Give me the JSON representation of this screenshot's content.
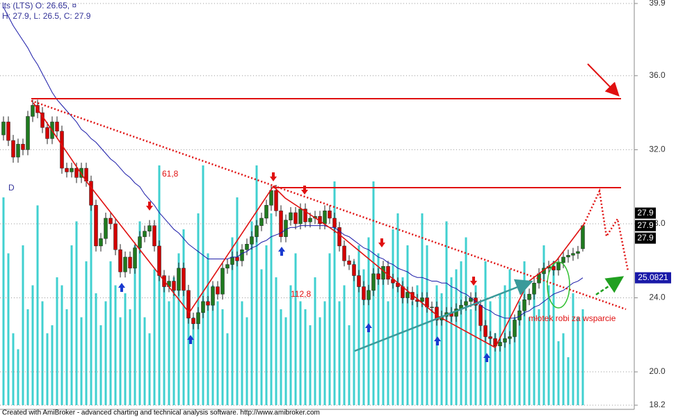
{
  "chart_data": {
    "type": "candlestick",
    "header_lines": [
      "lts (LTS) O: 26.65, ¤",
      "H: 27.9, L: 26.5, C: 27.9"
    ],
    "footer": "Created with AmiBroker - advanced charting and technical analysis software. http://www.amibroker.com",
    "annotations": {
      "d": "D",
      "fib1": "61,8",
      "fib2": "112,8",
      "note": "młotek robi za wsparcie"
    },
    "ylim": [
      18.2,
      39.9
    ],
    "yticks": [
      {
        "value": 18.2,
        "label": "18.2"
      },
      {
        "value": 20,
        "label": "20.0"
      },
      {
        "value": 24,
        "label": "24.0"
      },
      {
        "value": 28,
        "label": "28.0"
      },
      {
        "value": 32,
        "label": "32.0"
      },
      {
        "value": 36,
        "label": "36.0"
      },
      {
        "value": 39.9,
        "label": "39.9"
      }
    ],
    "grid": true,
    "up_color": "#1f7a1f",
    "down_color": "#d40000",
    "candles": [
      [
        32.8,
        33.8,
        32.5,
        33.5
      ],
      [
        33.5,
        33.8,
        32.2,
        32.5
      ],
      [
        32.5,
        32.8,
        31.3,
        31.6
      ],
      [
        31.6,
        32.6,
        31.3,
        32.3
      ],
      [
        32.3,
        32.6,
        31.7,
        32.0
      ],
      [
        32.0,
        34.1,
        31.7,
        33.8
      ],
      [
        33.8,
        34.7,
        33.5,
        34.4
      ],
      [
        34.4,
        34.7,
        33.7,
        34.0
      ],
      [
        34.0,
        34.3,
        32.9,
        33.2
      ],
      [
        33.2,
        33.5,
        32.3,
        32.6
      ],
      [
        32.6,
        33.8,
        32.3,
        33.5
      ],
      [
        33.5,
        33.8,
        32.7,
        33.0
      ],
      [
        33.0,
        33.3,
        30.7,
        31.0
      ],
      [
        31.0,
        31.3,
        30.5,
        30.8
      ],
      [
        30.8,
        31.3,
        30.5,
        31.0
      ],
      [
        31.0,
        31.3,
        30.2,
        30.5
      ],
      [
        30.5,
        31.3,
        30.2,
        31.0
      ],
      [
        31.0,
        31.3,
        30.0,
        30.3
      ],
      [
        30.3,
        30.6,
        28.7,
        29.0
      ],
      [
        29.0,
        29.3,
        26.5,
        26.8
      ],
      [
        26.8,
        27.5,
        26.5,
        27.2
      ],
      [
        27.2,
        28.6,
        26.9,
        28.3
      ],
      [
        28.3,
        28.6,
        27.7,
        28.0
      ],
      [
        28.0,
        28.3,
        26.3,
        26.6
      ],
      [
        26.6,
        26.9,
        25.1,
        25.4
      ],
      [
        25.4,
        26.5,
        25.1,
        26.2
      ],
      [
        26.2,
        26.5,
        25.3,
        25.6
      ],
      [
        25.6,
        27.0,
        25.3,
        26.7
      ],
      [
        26.7,
        27.6,
        26.4,
        27.3
      ],
      [
        27.3,
        27.9,
        27.0,
        27.6
      ],
      [
        27.6,
        28.2,
        27.3,
        27.9
      ],
      [
        27.9,
        28.2,
        26.5,
        26.8
      ],
      [
        26.8,
        27.1,
        24.9,
        25.2
      ],
      [
        25.2,
        25.5,
        24.3,
        24.6
      ],
      [
        24.6,
        25.2,
        24.3,
        24.9
      ],
      [
        24.9,
        25.2,
        24.1,
        24.4
      ],
      [
        24.4,
        25.9,
        24.1,
        25.6
      ],
      [
        25.6,
        25.9,
        24.1,
        24.4
      ],
      [
        24.4,
        24.7,
        22.6,
        22.9
      ],
      [
        22.9,
        23.2,
        22.3,
        22.6
      ],
      [
        22.6,
        23.5,
        22.3,
        23.2
      ],
      [
        23.2,
        24.1,
        22.9,
        23.8
      ],
      [
        23.8,
        24.1,
        23.3,
        23.6
      ],
      [
        23.6,
        24.9,
        23.3,
        24.6
      ],
      [
        24.6,
        24.9,
        23.9,
        24.2
      ],
      [
        24.2,
        25.9,
        23.9,
        25.6
      ],
      [
        25.6,
        26.1,
        25.3,
        25.8
      ],
      [
        25.8,
        26.5,
        25.5,
        26.2
      ],
      [
        26.2,
        26.5,
        25.7,
        26.0
      ],
      [
        26.0,
        26.9,
        25.7,
        26.6
      ],
      [
        26.6,
        27.2,
        26.3,
        26.9
      ],
      [
        26.9,
        27.6,
        26.6,
        27.3
      ],
      [
        27.3,
        28.2,
        27.0,
        27.9
      ],
      [
        27.9,
        28.6,
        27.6,
        28.3
      ],
      [
        28.3,
        29.3,
        28.0,
        29.0
      ],
      [
        29.0,
        30.1,
        28.7,
        29.8
      ],
      [
        29.8,
        30.1,
        28.4,
        28.7
      ],
      [
        28.7,
        29.0,
        27.0,
        27.3
      ],
      [
        27.3,
        28.5,
        27.0,
        28.2
      ],
      [
        28.2,
        28.9,
        27.9,
        28.6
      ],
      [
        28.6,
        28.9,
        27.7,
        28.0
      ],
      [
        28.0,
        29.1,
        27.7,
        28.8
      ],
      [
        28.8,
        29.1,
        27.8,
        28.1
      ],
      [
        28.1,
        28.6,
        27.8,
        28.3
      ],
      [
        28.3,
        28.7,
        28.0,
        28.4
      ],
      [
        28.4,
        28.7,
        27.7,
        28.0
      ],
      [
        28.0,
        29.0,
        27.7,
        28.7
      ],
      [
        28.7,
        29.0,
        28.0,
        28.3
      ],
      [
        28.3,
        28.6,
        27.5,
        27.8
      ],
      [
        27.8,
        28.1,
        26.5,
        26.8
      ],
      [
        26.8,
        27.1,
        25.7,
        26.0
      ],
      [
        26.0,
        26.3,
        25.5,
        25.8
      ],
      [
        25.8,
        26.1,
        24.9,
        25.2
      ],
      [
        25.2,
        25.5,
        24.3,
        24.6
      ],
      [
        24.6,
        24.9,
        23.6,
        23.9
      ],
      [
        23.9,
        24.7,
        23.6,
        24.4
      ],
      [
        24.4,
        25.6,
        24.1,
        25.3
      ],
      [
        25.3,
        25.6,
        24.7,
        25.0
      ],
      [
        25.0,
        26.0,
        24.7,
        25.7
      ],
      [
        25.7,
        26.0,
        24.7,
        25.0
      ],
      [
        25.0,
        25.3,
        24.5,
        24.8
      ],
      [
        24.8,
        25.1,
        24.3,
        24.6
      ],
      [
        24.6,
        24.9,
        23.7,
        24.0
      ],
      [
        24.0,
        24.6,
        23.7,
        24.3
      ],
      [
        24.3,
        24.6,
        23.6,
        23.9
      ],
      [
        23.9,
        24.2,
        23.5,
        23.8
      ],
      [
        23.8,
        24.3,
        23.5,
        24.0
      ],
      [
        24.0,
        24.3,
        23.2,
        23.5
      ],
      [
        23.5,
        23.8,
        23.2,
        23.5
      ],
      [
        23.5,
        23.8,
        22.5,
        22.8
      ],
      [
        22.8,
        23.3,
        22.5,
        23.0
      ],
      [
        23.0,
        23.5,
        22.7,
        23.2
      ],
      [
        23.2,
        23.5,
        22.7,
        23.0
      ],
      [
        23.0,
        23.7,
        22.7,
        23.4
      ],
      [
        23.4,
        23.9,
        23.1,
        23.6
      ],
      [
        23.6,
        24.1,
        23.3,
        23.8
      ],
      [
        23.8,
        24.3,
        23.5,
        24.0
      ],
      [
        24.0,
        24.3,
        23.3,
        23.6
      ],
      [
        23.6,
        23.9,
        22.2,
        22.5
      ],
      [
        22.5,
        22.8,
        21.6,
        21.9
      ],
      [
        21.9,
        22.2,
        21.5,
        21.8
      ],
      [
        21.8,
        22.1,
        21.1,
        21.4
      ],
      [
        21.4,
        21.9,
        21.1,
        21.6
      ],
      [
        21.6,
        22.1,
        21.3,
        21.8
      ],
      [
        21.8,
        22.2,
        21.5,
        21.9
      ],
      [
        21.9,
        23.1,
        21.6,
        22.8
      ],
      [
        22.8,
        23.6,
        22.5,
        23.3
      ],
      [
        23.3,
        24.2,
        23.0,
        23.9
      ],
      [
        23.9,
        24.5,
        23.6,
        24.2
      ],
      [
        24.2,
        25.1,
        23.9,
        24.8
      ],
      [
        24.8,
        25.6,
        24.5,
        25.3
      ],
      [
        25.3,
        25.9,
        25.0,
        25.6
      ],
      [
        25.6,
        26.0,
        25.3,
        25.7
      ],
      [
        25.7,
        26.0,
        25.2,
        25.5
      ],
      [
        25.5,
        26.2,
        25.2,
        25.9
      ],
      [
        25.9,
        26.5,
        25.6,
        26.2
      ],
      [
        26.2,
        26.6,
        25.9,
        26.3
      ],
      [
        26.3,
        26.7,
        26.0,
        26.4
      ],
      [
        26.4,
        26.8,
        26.1,
        26.5
      ],
      [
        26.65,
        27.9,
        26.5,
        27.9
      ]
    ],
    "volume": {
      "color": "#40d0d0",
      "values": [
        260,
        190,
        90,
        70,
        200,
        120,
        150,
        250,
        130,
        90,
        100,
        160,
        150,
        120,
        200,
        230,
        110,
        180,
        260,
        140,
        100,
        130,
        180,
        150,
        110,
        140,
        120,
        200,
        230,
        110,
        90,
        170,
        300,
        160,
        130,
        160,
        190,
        220,
        140,
        110,
        240,
        300,
        190,
        150,
        130,
        120,
        90,
        210,
        260,
        130,
        110,
        230,
        300,
        170,
        200,
        240,
        160,
        120,
        110,
        150,
        190,
        130,
        120,
        100,
        160,
        110,
        130,
        190,
        280,
        130,
        150,
        100,
        180,
        200,
        170,
        210,
        280,
        190,
        170,
        130,
        220,
        240,
        160,
        200,
        130,
        150,
        240,
        200,
        120,
        150,
        140,
        230,
        160,
        170,
        180,
        210,
        120,
        150,
        100,
        180,
        130,
        90,
        140,
        150,
        170,
        110,
        130,
        180,
        110,
        140,
        120,
        200,
        150,
        180,
        80,
        90,
        60,
        140,
        110,
        120
      ]
    },
    "ma": {
      "color": "#1a1aa8",
      "values": [
        39.7,
        39.2,
        38.7,
        38.3,
        37.9,
        37.5,
        37.0,
        36.6,
        36.1,
        35.6,
        35.1,
        34.7,
        34.4,
        34.1,
        33.8,
        33.5,
        33.1,
        32.9,
        32.6,
        32.4,
        32.1,
        31.8,
        31.5,
        31.3,
        31.0,
        30.7,
        30.5,
        30.2,
        30.0,
        29.6,
        29.3,
        29.0,
        28.6,
        28.3,
        28.0,
        27.7,
        27.5,
        27.2,
        26.9,
        26.7,
        26.5,
        26.3,
        26.1,
        26.1,
        26.1,
        26.1,
        26.1,
        26.2,
        26.2,
        26.4,
        26.5,
        26.7,
        26.8,
        27.0,
        27.1,
        27.3,
        27.4,
        27.5,
        27.7,
        27.8,
        27.8,
        27.9,
        27.9,
        27.9,
        27.9,
        27.9,
        27.9,
        27.8,
        27.8,
        27.6,
        27.4,
        27.3,
        27.1,
        26.9,
        26.7,
        26.6,
        26.4,
        26.2,
        26.1,
        25.9,
        25.8,
        25.6,
        25.5,
        25.4,
        25.2,
        25.1,
        25.1,
        25.0,
        24.9,
        24.9,
        24.8,
        24.8,
        24.6,
        24.5,
        24.3,
        24.2,
        24.0,
        23.8,
        23.6,
        23.4,
        23.3,
        23.1,
        23.0,
        22.9,
        22.9,
        22.9,
        23.0,
        23.2,
        23.3,
        23.5,
        23.6,
        23.8,
        24.0,
        24.2,
        24.3,
        24.4,
        24.6,
        24.8,
        24.9,
        25.0821
      ]
    }
  }
}
